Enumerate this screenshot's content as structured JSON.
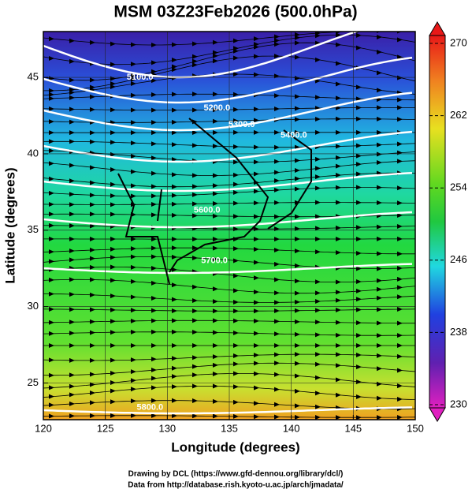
{
  "map": {
    "title": "MSM 03Z23Feb2026 (500.0hPa)",
    "x_label": "Longitude (degrees)",
    "y_label": "Latitude  (degrees)",
    "xlim": [
      120,
      150
    ],
    "ylim": [
      22.6,
      48
    ],
    "xticks": [
      120,
      125,
      130,
      135,
      140,
      145,
      150
    ],
    "yticks": [
      25,
      30,
      35,
      40,
      45
    ],
    "colorbar": {
      "lim": [
        230,
        270
      ],
      "ticks": [
        230,
        238,
        246,
        254,
        262,
        270
      ]
    },
    "contour_labels": [
      {
        "text": "5100.0",
        "lon": 127.8,
        "lat": 45.0
      },
      {
        "text": "5200.0",
        "lon": 134.0,
        "lat": 43.0
      },
      {
        "text": "5300.0",
        "lon": 136.0,
        "lat": 41.9
      },
      {
        "text": "5400.0",
        "lon": 140.2,
        "lat": 41.2
      },
      {
        "text": "5600.0",
        "lon": 133.2,
        "lat": 36.3
      },
      {
        "text": "5700.0",
        "lon": 133.8,
        "lat": 33.0
      },
      {
        "text": "5800.0",
        "lon": 128.6,
        "lat": 23.4
      }
    ],
    "footer": [
      "Drawing by DCL (https://www.gfd-dennou.org/library/dcl/)",
      "Data from http://database.rish.kyoto-u.ac.jp/arch/jmadata/"
    ]
  }
}
